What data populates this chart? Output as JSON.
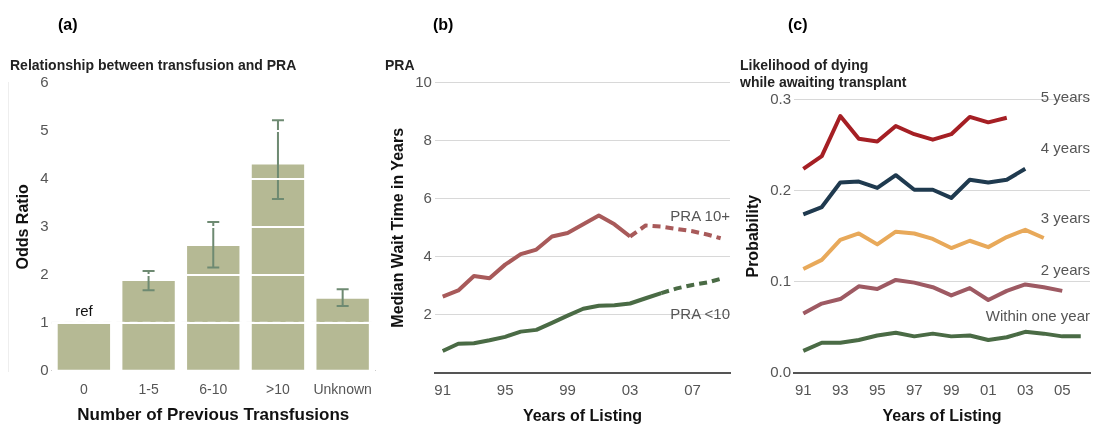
{
  "chart_data": [
    {
      "type": "bar",
      "title": "Relationship between transfusion and PRA",
      "xlabel": "Number of Previous Transfusions",
      "ylabel": "Odds Ratio",
      "categories": [
        "0",
        "1-5",
        "6-10",
        ">10",
        "Unknown"
      ],
      "values": [
        1.0,
        1.87,
        2.6,
        4.3,
        1.5
      ],
      "color": "#b5b994",
      "errors": [
        null,
        [
          1.68,
          2.08
        ],
        [
          2.15,
          3.1
        ],
        [
          3.58,
          5.22
        ],
        [
          1.35,
          1.7
        ]
      ],
      "ylim": [
        0,
        6
      ],
      "yticks": [
        0,
        1,
        2,
        3,
        4,
        5,
        6
      ],
      "grid": "y",
      "ref_lines": [
        {
          "axis": "y",
          "value": 1,
          "color": "#eeeeee",
          "line_style": "dashed"
        }
      ],
      "annotations": [
        "(a)",
        {
          "text": "ref",
          "x": "0",
          "y": 1
        }
      ]
    },
    {
      "type": "line",
      "title": "PRA",
      "xlabel": "Years of Listing",
      "ylabel": "Median Wait Time in Years",
      "xlim": [
        1990.5,
        2009.4
      ],
      "xticks": [
        {
          "value": 1991,
          "label": "91"
        },
        {
          "value": 1995,
          "label": "95"
        },
        {
          "value": 1999,
          "label": "99"
        },
        {
          "value": 2003,
          "label": "03"
        },
        {
          "value": 2007,
          "label": "07"
        }
      ],
      "ylim": [
        0,
        10
      ],
      "yticks": [
        2,
        4,
        6,
        8,
        10
      ],
      "grid": "y",
      "marker": "none",
      "series": [
        {
          "name": "PRA 10+",
          "color": "#a85a5a",
          "line_style": "solid",
          "x": [
            1991,
            1992,
            1993,
            1994,
            1995,
            1996,
            1997,
            1998,
            1999,
            2000,
            2001,
            2002,
            2003
          ],
          "values": [
            2.63,
            2.84,
            3.34,
            3.26,
            3.73,
            4.09,
            4.25,
            4.7,
            4.82,
            5.12,
            5.42,
            5.12,
            4.7
          ]
        },
        {
          "color": "#a85a5a",
          "line_style": "dashed",
          "x": [
            2003,
            2004,
            2005,
            2006,
            2007,
            2008,
            2008.8
          ],
          "values": [
            4.7,
            5.08,
            5.04,
            4.96,
            4.88,
            4.76,
            4.64
          ]
        },
        {
          "name": "PRA <10",
          "color": "#4a6b45",
          "line_style": "solid",
          "x": [
            1991,
            1992,
            1993,
            1994,
            1995,
            1996,
            1997,
            1998,
            1999,
            2000,
            2001,
            2002,
            2003,
            2004,
            2005
          ],
          "values": [
            0.75,
            1.0,
            1.02,
            1.12,
            1.24,
            1.42,
            1.48,
            1.72,
            1.97,
            2.21,
            2.31,
            2.33,
            2.39,
            2.57,
            2.75
          ]
        },
        {
          "color": "#4a6b45",
          "line_style": "dashed",
          "x": [
            2005,
            2006,
            2007,
            2008,
            2008.8
          ],
          "values": [
            2.75,
            2.91,
            3.03,
            3.12,
            3.24
          ]
        }
      ],
      "annotations": [
        "(b)"
      ]
    },
    {
      "type": "line",
      "title": "Likelihood of dying\nwhile awaiting transplant",
      "xlabel": "Years of Listing",
      "ylabel": "Probability",
      "xlim": [
        1990.5,
        2006.5
      ],
      "xticks": [
        {
          "value": 1991,
          "label": "91"
        },
        {
          "value": 1993,
          "label": "93"
        },
        {
          "value": 1995,
          "label": "95"
        },
        {
          "value": 1997,
          "label": "97"
        },
        {
          "value": 1999,
          "label": "99"
        },
        {
          "value": 2001,
          "label": "01"
        },
        {
          "value": 2003,
          "label": "03"
        },
        {
          "value": 2005,
          "label": "05"
        }
      ],
      "ylim": [
        0,
        0.3
      ],
      "yticks": [
        {
          "value": 0,
          "label": "0.0"
        },
        0.1,
        0.2,
        0.3
      ],
      "grid": "y",
      "marker": "none",
      "x": [
        1991,
        1992,
        1993,
        1994,
        1995,
        1996,
        1997,
        1998,
        1999,
        2000,
        2001,
        2002,
        2003,
        2004,
        2005,
        2006
      ],
      "series": [
        {
          "name": "5 years",
          "color": "#a51f24",
          "values": [
            0.224,
            0.238,
            0.282,
            0.257,
            0.254,
            0.271,
            0.262,
            0.256,
            0.262,
            0.281,
            0.275,
            0.28,
            null,
            null,
            null,
            null
          ]
        },
        {
          "name": "4 years",
          "color": "#1f3a4f",
          "values": [
            0.174,
            0.182,
            0.209,
            0.21,
            0.203,
            0.217,
            0.201,
            0.201,
            0.192,
            0.212,
            0.209,
            0.212,
            0.224,
            null,
            null,
            null
          ]
        },
        {
          "name": "3 years",
          "color": "#e8a95a",
          "values": [
            0.114,
            0.124,
            0.146,
            0.153,
            0.141,
            0.155,
            0.153,
            0.147,
            0.137,
            0.145,
            0.138,
            0.149,
            0.157,
            0.148,
            null,
            null
          ]
        },
        {
          "name": "2 years",
          "color": "#9e5a63",
          "values": [
            0.065,
            0.076,
            0.081,
            0.095,
            0.092,
            0.102,
            0.099,
            0.094,
            0.085,
            0.093,
            0.08,
            0.09,
            0.097,
            0.094,
            0.09,
            null
          ]
        },
        {
          "name": "Within one year",
          "color": "#4a6b45",
          "values": [
            0.024,
            0.033,
            0.033,
            0.036,
            0.041,
            0.044,
            0.04,
            0.043,
            0.04,
            0.041,
            0.036,
            0.039,
            0.045,
            0.043,
            0.04,
            0.04
          ]
        }
      ],
      "annotations": [
        "(c)"
      ]
    }
  ]
}
